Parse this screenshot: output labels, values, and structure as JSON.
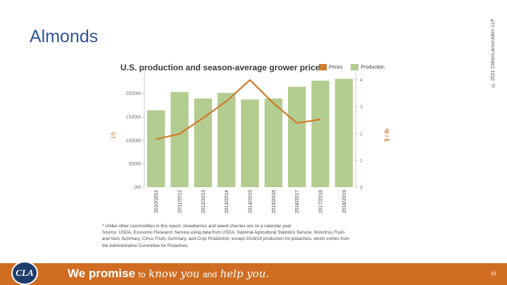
{
  "slide": {
    "title": "Almonds",
    "copyright": "© 2021 CliftonLarsonAllen LLP",
    "page_number": "33"
  },
  "chart_data": {
    "type": "bar",
    "title": "U.S. production and season-average grower price",
    "categories": [
      "2010/2011",
      "2011/2012",
      "2012/2013",
      "2013/2014",
      "2014/2015",
      "2015/2016",
      "2016/2017",
      "2017/2018",
      "2018/2019"
    ],
    "series": [
      {
        "name": "Production",
        "kind": "bar",
        "axis": "left",
        "color": "#b3cc8f",
        "values": [
          1640,
          2030,
          1890,
          2010,
          1870,
          1890,
          2140,
          2270,
          2310
        ]
      },
      {
        "name": "Prices",
        "kind": "line",
        "axis": "right",
        "color": "#d07a2c",
        "values": [
          1.79,
          1.99,
          2.58,
          3.21,
          4.0,
          3.13,
          2.39,
          2.53,
          null
        ]
      }
    ],
    "legend": [
      "Prices",
      "Production"
    ],
    "ylabel": "Lb",
    "y2label": "$ / lb",
    "ylim": [
      0,
      2400
    ],
    "yticks": [
      0,
      500,
      1000,
      1500,
      2000
    ],
    "yticklabels": [
      "0M",
      "500M",
      "1000M",
      "1500M",
      "2000M"
    ],
    "y2lim": [
      0,
      4.2
    ],
    "y2ticks": [
      0,
      1,
      2,
      3,
      4
    ],
    "y2ticklabels": [
      "0",
      "1",
      "2",
      "3",
      "4"
    ]
  },
  "footnote": {
    "line1": "* Unlike other commodities in this report, strawberries and sweet cherries are on a calendar year.",
    "line2_a": "Source: USDA, Economic Research Service using data from USDA, National Agricultural Statistics Service, ",
    "line2_i": "Noncitrus Fruits",
    "line3_i": "and Nuts Summary, Citrus Fruits Summary, and Crop Production",
    "line3_a": ", except 2018/19 production for pistachios, which comes from",
    "line4": "the Administrative Committee for Pistachios."
  },
  "footer": {
    "logo_text": "CLA",
    "promise_lead": "We promise",
    "to": "to",
    "know_you": "know you",
    "and": "and",
    "help_you": "help you."
  }
}
